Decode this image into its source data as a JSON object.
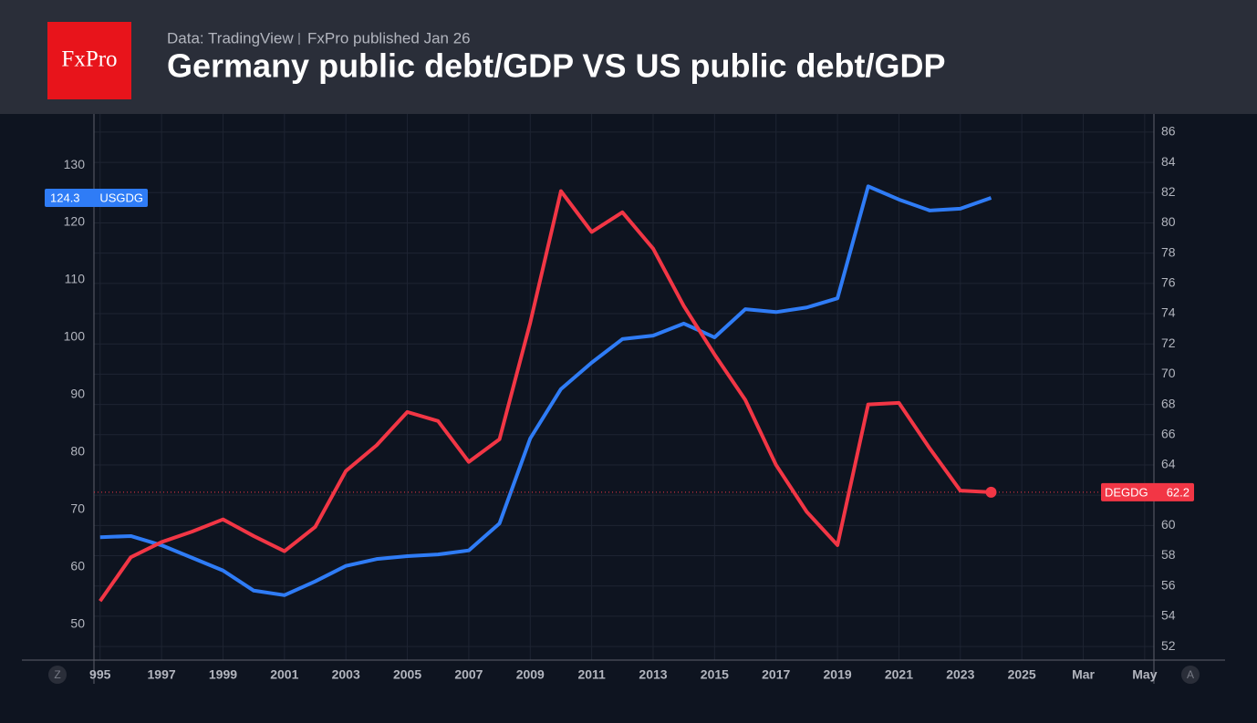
{
  "header": {
    "logo": "FxPro",
    "source": "Data: TradingView",
    "publisher": "FxPro published Jan 26"
  },
  "buttons": [
    "Z",
    "A"
  ],
  "chart_data": {
    "type": "line",
    "title": "Germany public debt/GDP VS US public debt/GDP",
    "x": [
      1995,
      1996,
      1997,
      1998,
      1999,
      2000,
      2001,
      2002,
      2003,
      2004,
      2005,
      2006,
      2007,
      2008,
      2009,
      2010,
      2011,
      2012,
      2013,
      2014,
      2015,
      2016,
      2017,
      2018,
      2019,
      2020,
      2021,
      2022,
      2023,
      2024
    ],
    "series": [
      {
        "name": "USGDG",
        "color": "#2f7cf6",
        "axis": "y",
        "values": [
          65.2,
          65.4,
          63.8,
          61.6,
          59.4,
          55.9,
          55.1,
          57.5,
          60.2,
          61.4,
          61.9,
          62.2,
          62.9,
          67.6,
          82.4,
          91.0,
          95.6,
          99.7,
          100.3,
          102.4,
          100.0,
          104.9,
          104.4,
          105.2,
          106.8,
          126.3,
          124.0,
          122.1,
          122.4,
          124.3
        ]
      },
      {
        "name": "DEGDG",
        "color": "#f23645",
        "axis": "y2",
        "values": [
          55.0,
          57.9,
          58.9,
          59.6,
          60.4,
          59.3,
          58.3,
          59.9,
          63.6,
          65.3,
          67.5,
          66.9,
          64.2,
          65.7,
          73.4,
          82.1,
          79.4,
          80.7,
          78.3,
          74.5,
          71.3,
          68.3,
          64.0,
          60.9,
          58.7,
          68.0,
          68.1,
          65.1,
          62.3,
          62.2
        ]
      }
    ],
    "xlim": [
      1994.8,
      2029.3
    ],
    "xticks": [
      {
        "value": 1995,
        "label": "995"
      },
      1997,
      1999,
      2001,
      2003,
      2005,
      2007,
      2009,
      2011,
      2013,
      2015,
      2017,
      2019,
      2021,
      2023,
      2025,
      {
        "value": 2027,
        "label": "Mar"
      },
      {
        "value": 2029,
        "label": "May"
      }
    ],
    "ylim": [
      43.8,
      138.9
    ],
    "yticks": [
      50,
      60,
      70,
      80,
      90,
      100,
      110,
      120,
      130
    ],
    "y2lim": [
      51.1,
      87.2
    ],
    "y2ticks": [
      52,
      54,
      56,
      58,
      60,
      62,
      64,
      66,
      68,
      70,
      72,
      74,
      76,
      78,
      80,
      82,
      84,
      86
    ],
    "grid": true
  }
}
